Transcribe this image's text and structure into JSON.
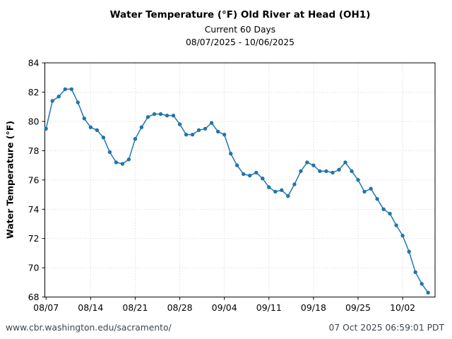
{
  "header": {
    "title": "Water Temperature (°F) Old River at Head (OH1)",
    "subtitle": "Current 60 Days",
    "date_range": "08/07/2025 - 10/06/2025"
  },
  "footer": {
    "left": "www.cbr.washington.edu/sacramento/",
    "right": "07 Oct 2025 06:59:01 PDT"
  },
  "chart_data": {
    "type": "line",
    "title": "Water Temperature (°F) Old River at Head (OH1)",
    "subtitle": "Current 60 Days",
    "date_range": "08/07/2025 - 10/06/2025",
    "xlabel": "",
    "ylabel": "Water Temperature (°F)",
    "ylim": [
      68,
      84
    ],
    "y_ticks": [
      68,
      70,
      72,
      74,
      76,
      78,
      80,
      82,
      84
    ],
    "x_tick_labels": [
      "08/07",
      "08/14",
      "08/21",
      "08/28",
      "09/04",
      "09/11",
      "09/18",
      "09/25",
      "10/02"
    ],
    "x_tick_days": [
      0,
      7,
      14,
      21,
      28,
      35,
      42,
      49,
      56
    ],
    "grid": true,
    "legend": "none",
    "marker": "circle",
    "line_color": "#1f77b4",
    "marker_edge_color": "#19688f",
    "x": [
      "08/07",
      "08/08",
      "08/09",
      "08/10",
      "08/11",
      "08/12",
      "08/13",
      "08/14",
      "08/15",
      "08/16",
      "08/17",
      "08/18",
      "08/19",
      "08/20",
      "08/21",
      "08/22",
      "08/23",
      "08/24",
      "08/25",
      "08/26",
      "08/27",
      "08/28",
      "08/29",
      "08/30",
      "08/31",
      "09/01",
      "09/02",
      "09/03",
      "09/04",
      "09/05",
      "09/06",
      "09/07",
      "09/08",
      "09/09",
      "09/10",
      "09/11",
      "09/12",
      "09/13",
      "09/14",
      "09/15",
      "09/16",
      "09/17",
      "09/18",
      "09/19",
      "09/20",
      "09/21",
      "09/22",
      "09/23",
      "09/24",
      "09/25",
      "09/26",
      "09/27",
      "09/28",
      "09/29",
      "09/30",
      "10/01",
      "10/02",
      "10/03",
      "10/04",
      "10/05",
      "10/06"
    ],
    "values": [
      79.5,
      81.4,
      81.7,
      82.2,
      82.2,
      81.3,
      80.2,
      79.6,
      79.4,
      78.9,
      77.9,
      77.2,
      77.1,
      77.4,
      78.8,
      79.6,
      80.3,
      80.5,
      80.5,
      80.4,
      80.4,
      79.8,
      79.1,
      79.1,
      79.4,
      79.5,
      79.9,
      79.3,
      79.1,
      77.8,
      77.0,
      76.4,
      76.3,
      76.5,
      76.1,
      75.5,
      75.2,
      75.3,
      74.9,
      75.7,
      76.6,
      77.2,
      77.0,
      76.6,
      76.6,
      76.5,
      76.7,
      77.2,
      76.6,
      76.0,
      75.2,
      75.4,
      74.7,
      74.0,
      73.7,
      72.9,
      72.2,
      71.1,
      69.7,
      68.9,
      68.3
    ]
  }
}
